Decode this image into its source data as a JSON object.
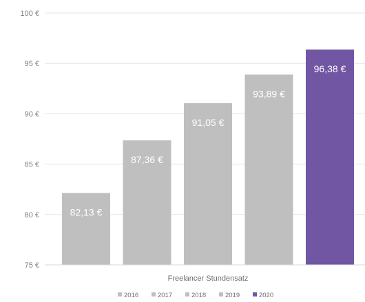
{
  "chart_data": {
    "type": "bar",
    "xlabel": "Freelancer Stundensatz",
    "ylim": [
      75,
      100
    ],
    "y_ticks": [
      75,
      80,
      85,
      90,
      95,
      100
    ],
    "y_tick_labels": [
      "75 €",
      "80 €",
      "85 €",
      "90 €",
      "95 €",
      "100 €"
    ],
    "grid": true,
    "legend_position": "bottom",
    "series": [
      {
        "name": "2016",
        "value": 82.13,
        "label": "82,13 €",
        "color": "#bfbfbf"
      },
      {
        "name": "2017",
        "value": 87.36,
        "label": "87,36 €",
        "color": "#bfbfbf"
      },
      {
        "name": "2018",
        "value": 91.05,
        "label": "91,05 €",
        "color": "#bfbfbf"
      },
      {
        "name": "2019",
        "value": 93.89,
        "label": "93,89 €",
        "color": "#bfbfbf"
      },
      {
        "name": "2020",
        "value": 96.38,
        "label": "96,38 €",
        "color": "#7156a3"
      }
    ]
  }
}
